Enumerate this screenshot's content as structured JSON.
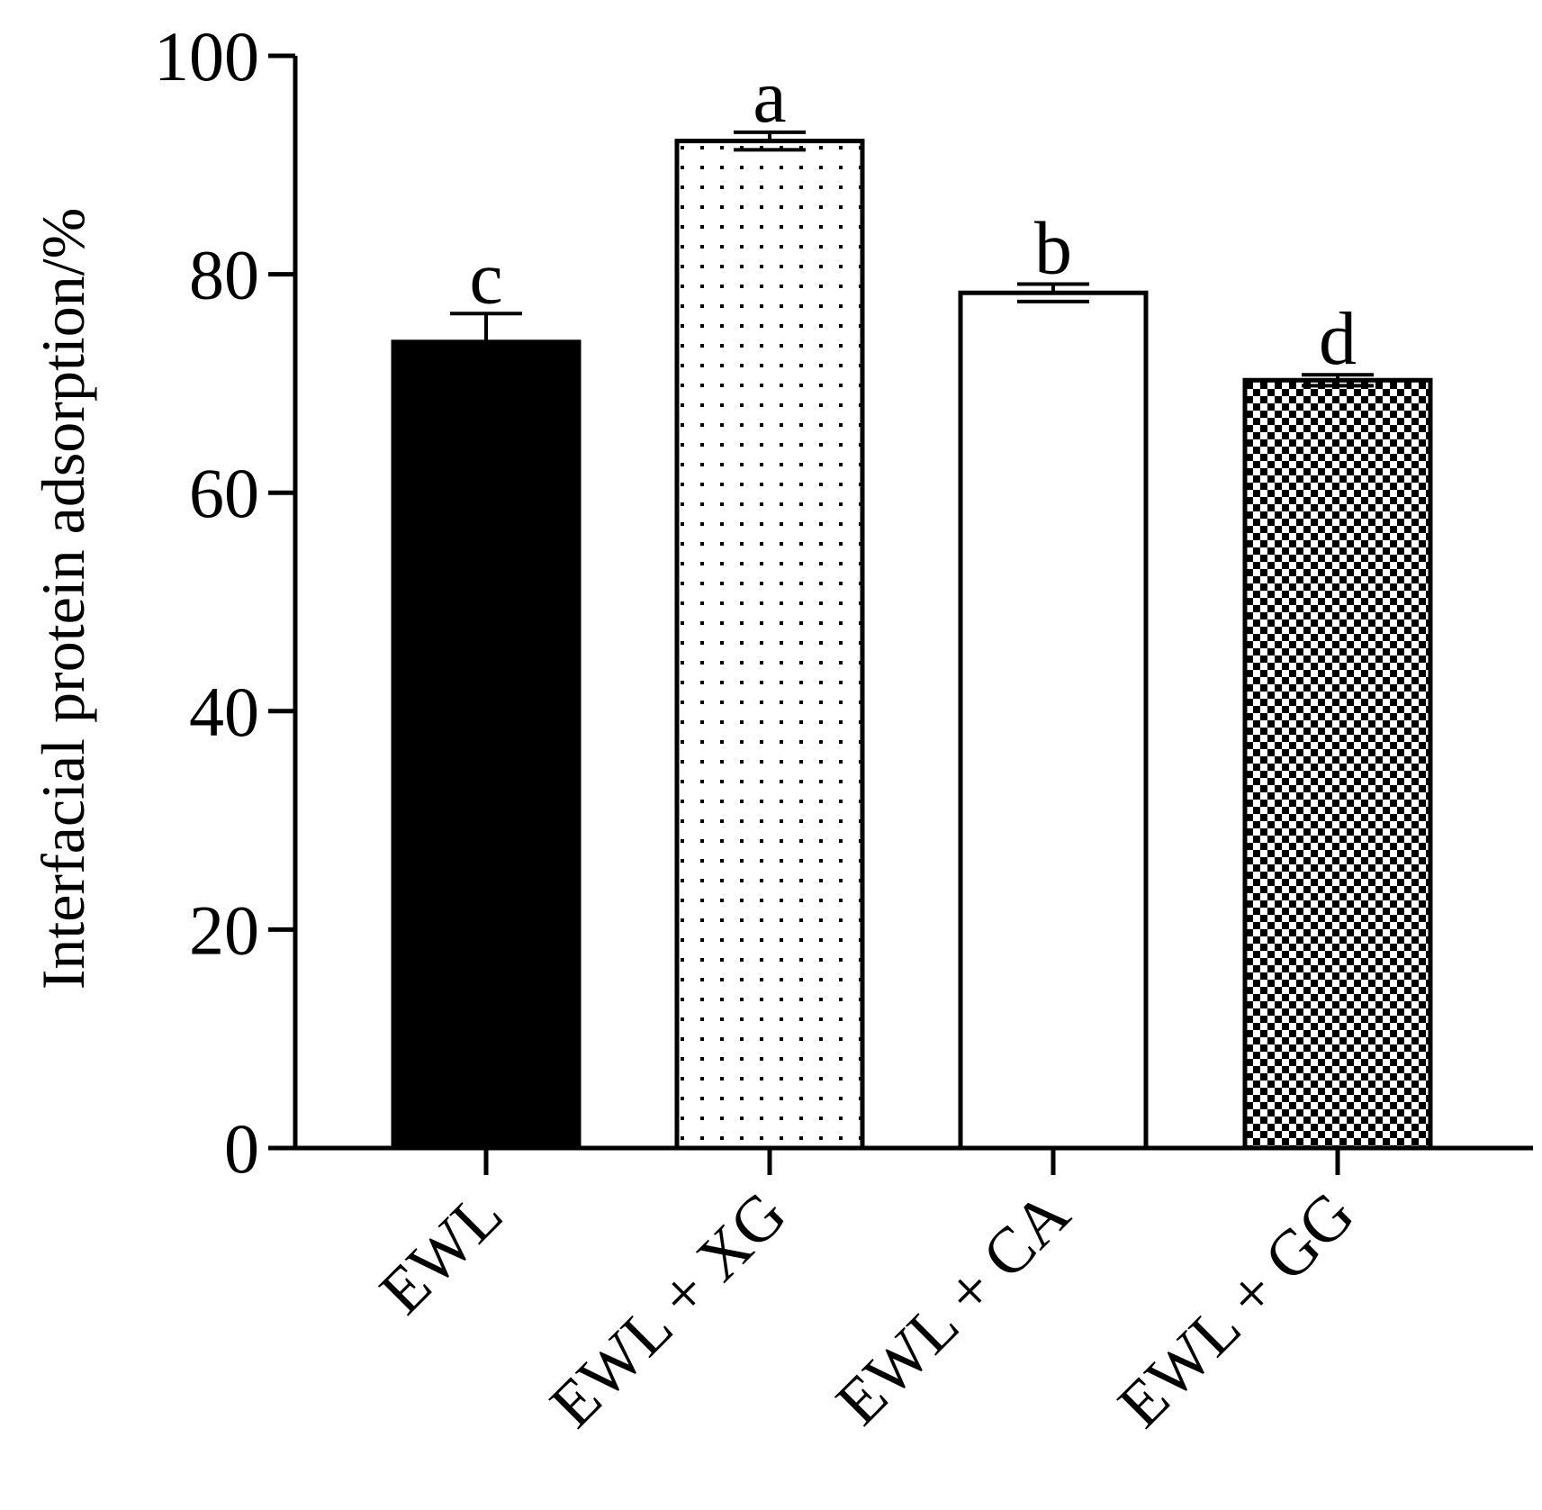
{
  "chart_data": {
    "type": "bar",
    "title": "",
    "xlabel": "",
    "ylabel": "Interfacial protein adsorption/%",
    "ylim": [
      0,
      100
    ],
    "yticks": [
      0,
      20,
      40,
      60,
      80,
      100
    ],
    "categories": [
      "EWL",
      "EWL + XG",
      "EWL + CA",
      "EWL + GG"
    ],
    "values": [
      73.8,
      92.2,
      78.3,
      70.3
    ],
    "errors": [
      2.6,
      0.8,
      0.8,
      0.5
    ],
    "significance": [
      "c",
      "a",
      "b",
      "d"
    ],
    "fills": [
      "solid-black",
      "sparse-dots",
      "white",
      "checkerboard"
    ],
    "grid": false,
    "legend": "none"
  }
}
